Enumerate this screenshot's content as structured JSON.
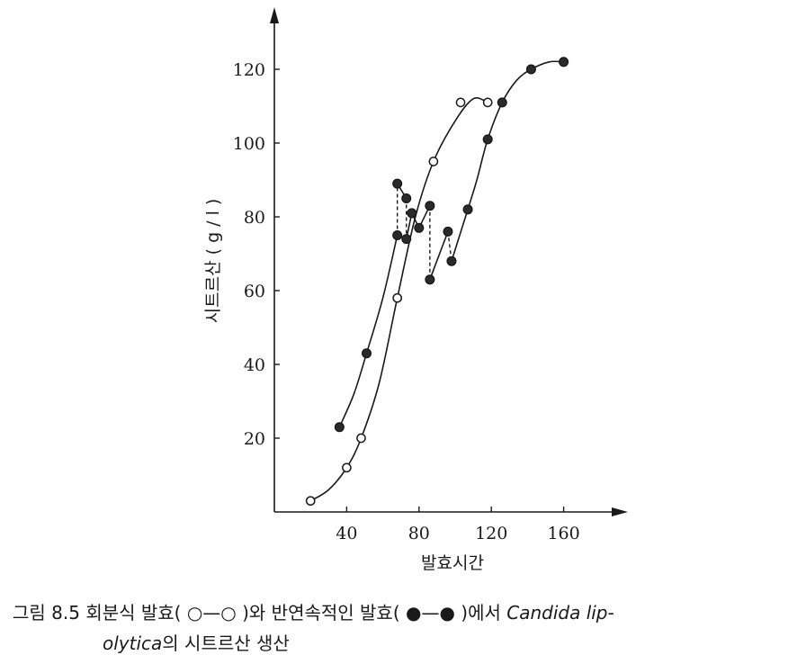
{
  "chart_data": {
    "type": "scatter",
    "xlabel": "발효시간",
    "ylabel": "시트르산 ( g / l )",
    "xlim": [
      0,
      195
    ],
    "ylim": [
      0,
      135
    ],
    "xticks": [
      40,
      80,
      120,
      160
    ],
    "yticks": [
      20,
      40,
      60,
      80,
      100,
      120
    ],
    "grid": false,
    "series": [
      {
        "marker": "open-circle",
        "line": "solid-smooth",
        "points": [
          [
            20,
            3
          ],
          [
            40,
            12
          ],
          [
            48,
            20
          ],
          [
            68,
            58
          ],
          [
            88,
            95
          ],
          [
            103,
            111
          ],
          [
            118,
            111
          ]
        ]
      },
      {
        "marker": "filled-circle",
        "line": "solid-with-dashed-drops",
        "points": [
          [
            36,
            23
          ],
          [
            51,
            43
          ],
          [
            68,
            75
          ],
          [
            68,
            89
          ],
          [
            73,
            85
          ],
          [
            73,
            74
          ],
          [
            76,
            81
          ],
          [
            80,
            77
          ],
          [
            86,
            83
          ],
          [
            86,
            63
          ],
          [
            96,
            76
          ],
          [
            98,
            68
          ],
          [
            107,
            82
          ],
          [
            118,
            101
          ],
          [
            126,
            111
          ],
          [
            142,
            120
          ],
          [
            160,
            122
          ]
        ],
        "dashed_drops": [
          [
            [
              68,
              75
            ],
            [
              68,
              89
            ]
          ],
          [
            [
              73,
              85
            ],
            [
              73,
              74
            ]
          ],
          [
            [
              86,
              83
            ],
            [
              86,
              63
            ]
          ],
          [
            [
              96,
              76
            ],
            [
              98,
              68
            ]
          ]
        ]
      }
    ]
  },
  "caption": {
    "prefix": "그림  8.5 회분식 발효(",
    "open_symbol": " ○—○ ",
    "middle": ")와 반연속적인 발효(",
    "filled_symbol": " ●—● ",
    "suffix": ")에서 ",
    "italic1": "Candida lip-",
    "line2_italic": "olytica",
    "line2_rest": "의 시트르산 생산"
  }
}
